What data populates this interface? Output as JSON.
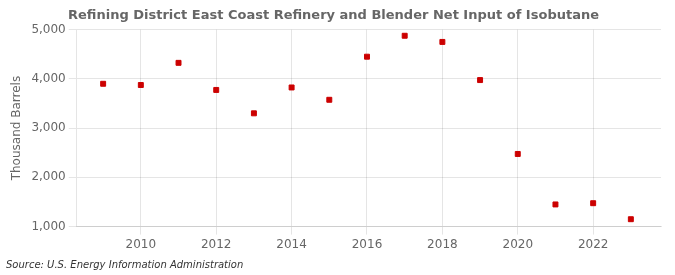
{
  "chart_data": {
    "type": "scatter",
    "title": "Refining District East Coast Refinery and Blender Net Input of Isobutane",
    "ylabel": "Thousand Barrels",
    "annotations": [
      "Source: U.S. Energy Information Administration"
    ],
    "x": [
      2009,
      2010,
      2011,
      2012,
      2013,
      2014,
      2015,
      2016,
      2017,
      2018,
      2019,
      2020,
      2021,
      2022,
      2023
    ],
    "values": [
      3900,
      3875,
      4325,
      3775,
      3300,
      3825,
      3575,
      4450,
      4875,
      4750,
      3975,
      2475,
      1450,
      1475,
      1150
    ],
    "color": "#CC0000",
    "marker": "square",
    "xlim": [
      2008.3,
      2023.8
    ],
    "xticks": [
      2010,
      2012,
      2014,
      2016,
      2018,
      2020,
      2022
    ],
    "ylim": [
      1000,
      5000
    ],
    "yticks": [
      {
        "value": 1000,
        "label": "1,000"
      },
      {
        "value": 2000,
        "label": "2,000"
      },
      {
        "value": 3000,
        "label": "3,000"
      },
      {
        "value": 4000,
        "label": "4,000"
      },
      {
        "value": 5000,
        "label": "5,000"
      }
    ],
    "grid": true
  }
}
